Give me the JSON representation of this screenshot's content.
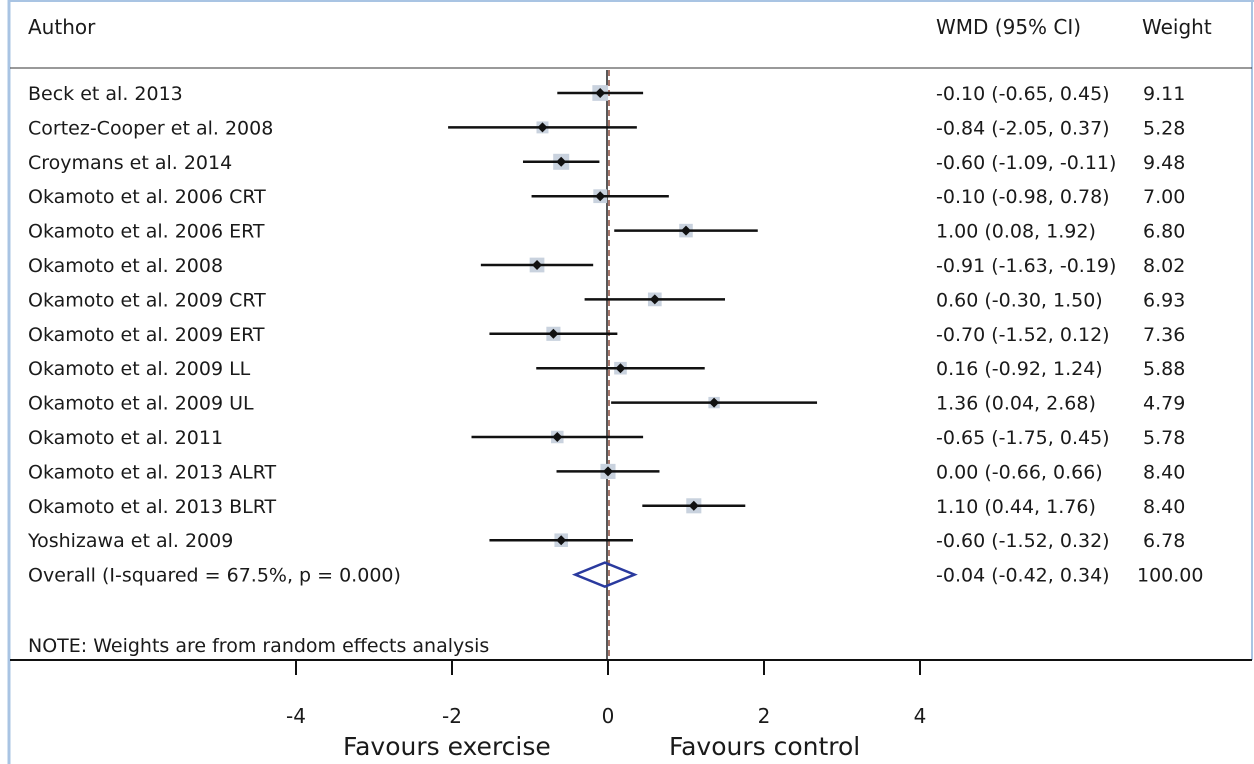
{
  "headers": {
    "author": "Author",
    "effect": "WMD (95% CI)",
    "weight": "Weight"
  },
  "note": "NOTE: Weights are from random effects analysis",
  "favours": {
    "left": "Favours exercise",
    "right": "Favours control"
  },
  "colors": {
    "frame": "#a9c4e3",
    "marker": "#111111",
    "weight_box": "#c9d2de",
    "null_line": "#8b4a3c",
    "overall_diamond": "#2a3a9e"
  },
  "chart_data": {
    "type": "forest",
    "measure": "WMD",
    "xlim": [
      -4,
      4
    ],
    "xticks": [
      -4,
      -2,
      0,
      2,
      4
    ],
    "xtick_labels": [
      "-4",
      "-2",
      "0",
      "2",
      "4"
    ],
    "studies": [
      {
        "author": "Beck et al. 2013",
        "wmd": -0.1,
        "lo": -0.65,
        "hi": 0.45,
        "weight": 9.11,
        "ci_text": "-0.10 (-0.65, 0.45)",
        "weight_text": "9.11"
      },
      {
        "author": "Cortez-Cooper et al. 2008",
        "wmd": -0.84,
        "lo": -2.05,
        "hi": 0.37,
        "weight": 5.28,
        "ci_text": "-0.84 (-2.05, 0.37)",
        "weight_text": "5.28"
      },
      {
        "author": "Croymans et al. 2014",
        "wmd": -0.6,
        "lo": -1.09,
        "hi": -0.11,
        "weight": 9.48,
        "ci_text": "-0.60 (-1.09, -0.11)",
        "weight_text": "9.48"
      },
      {
        "author": "Okamoto et al. 2006 CRT",
        "wmd": -0.1,
        "lo": -0.98,
        "hi": 0.78,
        "weight": 7.0,
        "ci_text": "-0.10 (-0.98, 0.78)",
        "weight_text": "7.00"
      },
      {
        "author": "Okamoto et al. 2006 ERT",
        "wmd": 1.0,
        "lo": 0.08,
        "hi": 1.92,
        "weight": 6.8,
        "ci_text": "1.00 (0.08, 1.92)",
        "weight_text": "6.80"
      },
      {
        "author": "Okamoto et al. 2008",
        "wmd": -0.91,
        "lo": -1.63,
        "hi": -0.19,
        "weight": 8.02,
        "ci_text": "-0.91 (-1.63, -0.19)",
        "weight_text": "8.02"
      },
      {
        "author": "Okamoto et al. 2009 CRT",
        "wmd": 0.6,
        "lo": -0.3,
        "hi": 1.5,
        "weight": 6.93,
        "ci_text": "0.60 (-0.30, 1.50)",
        "weight_text": "6.93"
      },
      {
        "author": "Okamoto et al. 2009 ERT",
        "wmd": -0.7,
        "lo": -1.52,
        "hi": 0.12,
        "weight": 7.36,
        "ci_text": "-0.70 (-1.52, 0.12)",
        "weight_text": "7.36"
      },
      {
        "author": "Okamoto et al. 2009 LL",
        "wmd": 0.16,
        "lo": -0.92,
        "hi": 1.24,
        "weight": 5.88,
        "ci_text": "0.16 (-0.92, 1.24)",
        "weight_text": "5.88"
      },
      {
        "author": "Okamoto et al. 2009 UL",
        "wmd": 1.36,
        "lo": 0.04,
        "hi": 2.68,
        "weight": 4.79,
        "ci_text": "1.36 (0.04, 2.68)",
        "weight_text": "4.79"
      },
      {
        "author": "Okamoto et al. 2011",
        "wmd": -0.65,
        "lo": -1.75,
        "hi": 0.45,
        "weight": 5.78,
        "ci_text": "-0.65 (-1.75, 0.45)",
        "weight_text": "5.78"
      },
      {
        "author": "Okamoto et al. 2013 ALRT",
        "wmd": 0.0,
        "lo": -0.66,
        "hi": 0.66,
        "weight": 8.4,
        "ci_text": "0.00 (-0.66, 0.66)",
        "weight_text": "8.40"
      },
      {
        "author": "Okamoto et al. 2013 BLRT",
        "wmd": 1.1,
        "lo": 0.44,
        "hi": 1.76,
        "weight": 8.4,
        "ci_text": "1.10 (0.44, 1.76)",
        "weight_text": "8.40"
      },
      {
        "author": "Yoshizawa et al. 2009",
        "wmd": -0.6,
        "lo": -1.52,
        "hi": 0.32,
        "weight": 6.78,
        "ci_text": "-0.60 (-1.52, 0.32)",
        "weight_text": "6.78"
      }
    ],
    "overall": {
      "author": "Overall  (I-squared = 67.5%, p = 0.000)",
      "wmd": -0.04,
      "lo": -0.42,
      "hi": 0.34,
      "weight": 100.0,
      "ci_text": "-0.04 (-0.42, 0.34)",
      "weight_text": "100.00"
    }
  }
}
